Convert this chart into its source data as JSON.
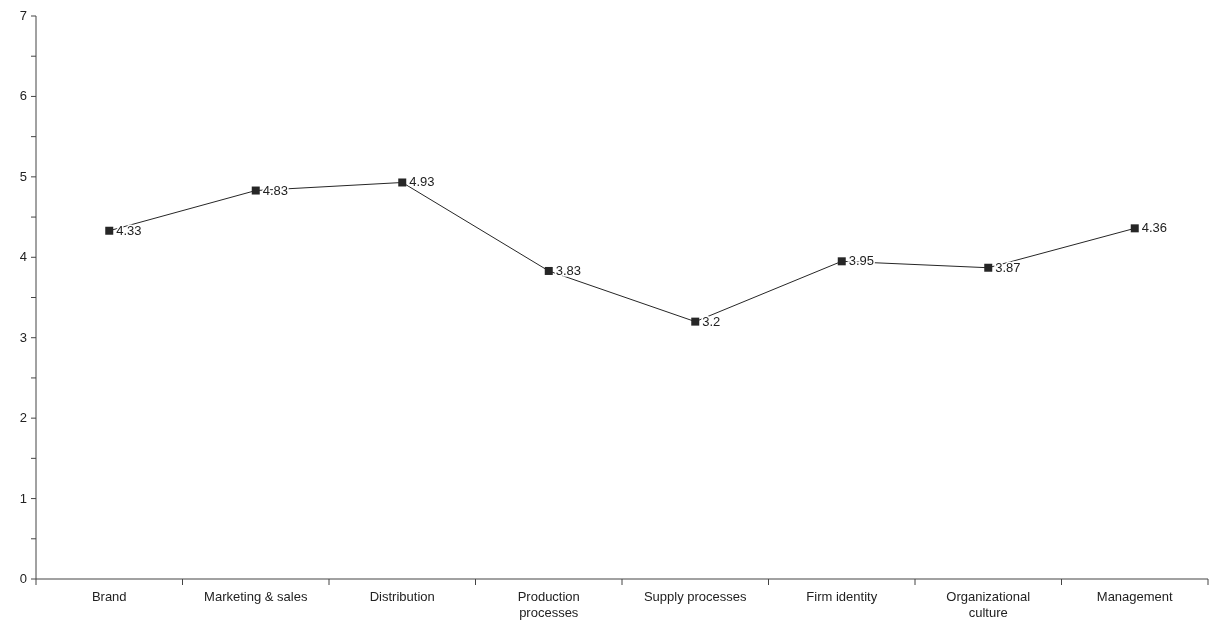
{
  "chart_data": {
    "type": "line",
    "categories": [
      "Brand",
      "Marketing & sales",
      "Distribution",
      "Production processes",
      "Supply processes",
      "Firm identity",
      "Organizational culture",
      "Management"
    ],
    "series": [
      {
        "color": "#262626",
        "values": [
          4.33,
          4.83,
          4.93,
          3.83,
          3.2,
          3.95,
          3.87,
          4.36
        ]
      }
    ],
    "ylim": [
      0,
      7
    ],
    "yticks": [
      0,
      {
        "value": 0.5,
        "label": null
      },
      1,
      {
        "value": 1.5,
        "label": null
      },
      2,
      {
        "value": 2.5,
        "label": null
      },
      3,
      {
        "value": 3.5,
        "label": null
      },
      4,
      {
        "value": 4.5,
        "label": null
      },
      5,
      {
        "value": 5.5,
        "label": null
      },
      6,
      {
        "value": 6.5,
        "label": null
      },
      7
    ],
    "marker": "square",
    "data_labels": true
  }
}
